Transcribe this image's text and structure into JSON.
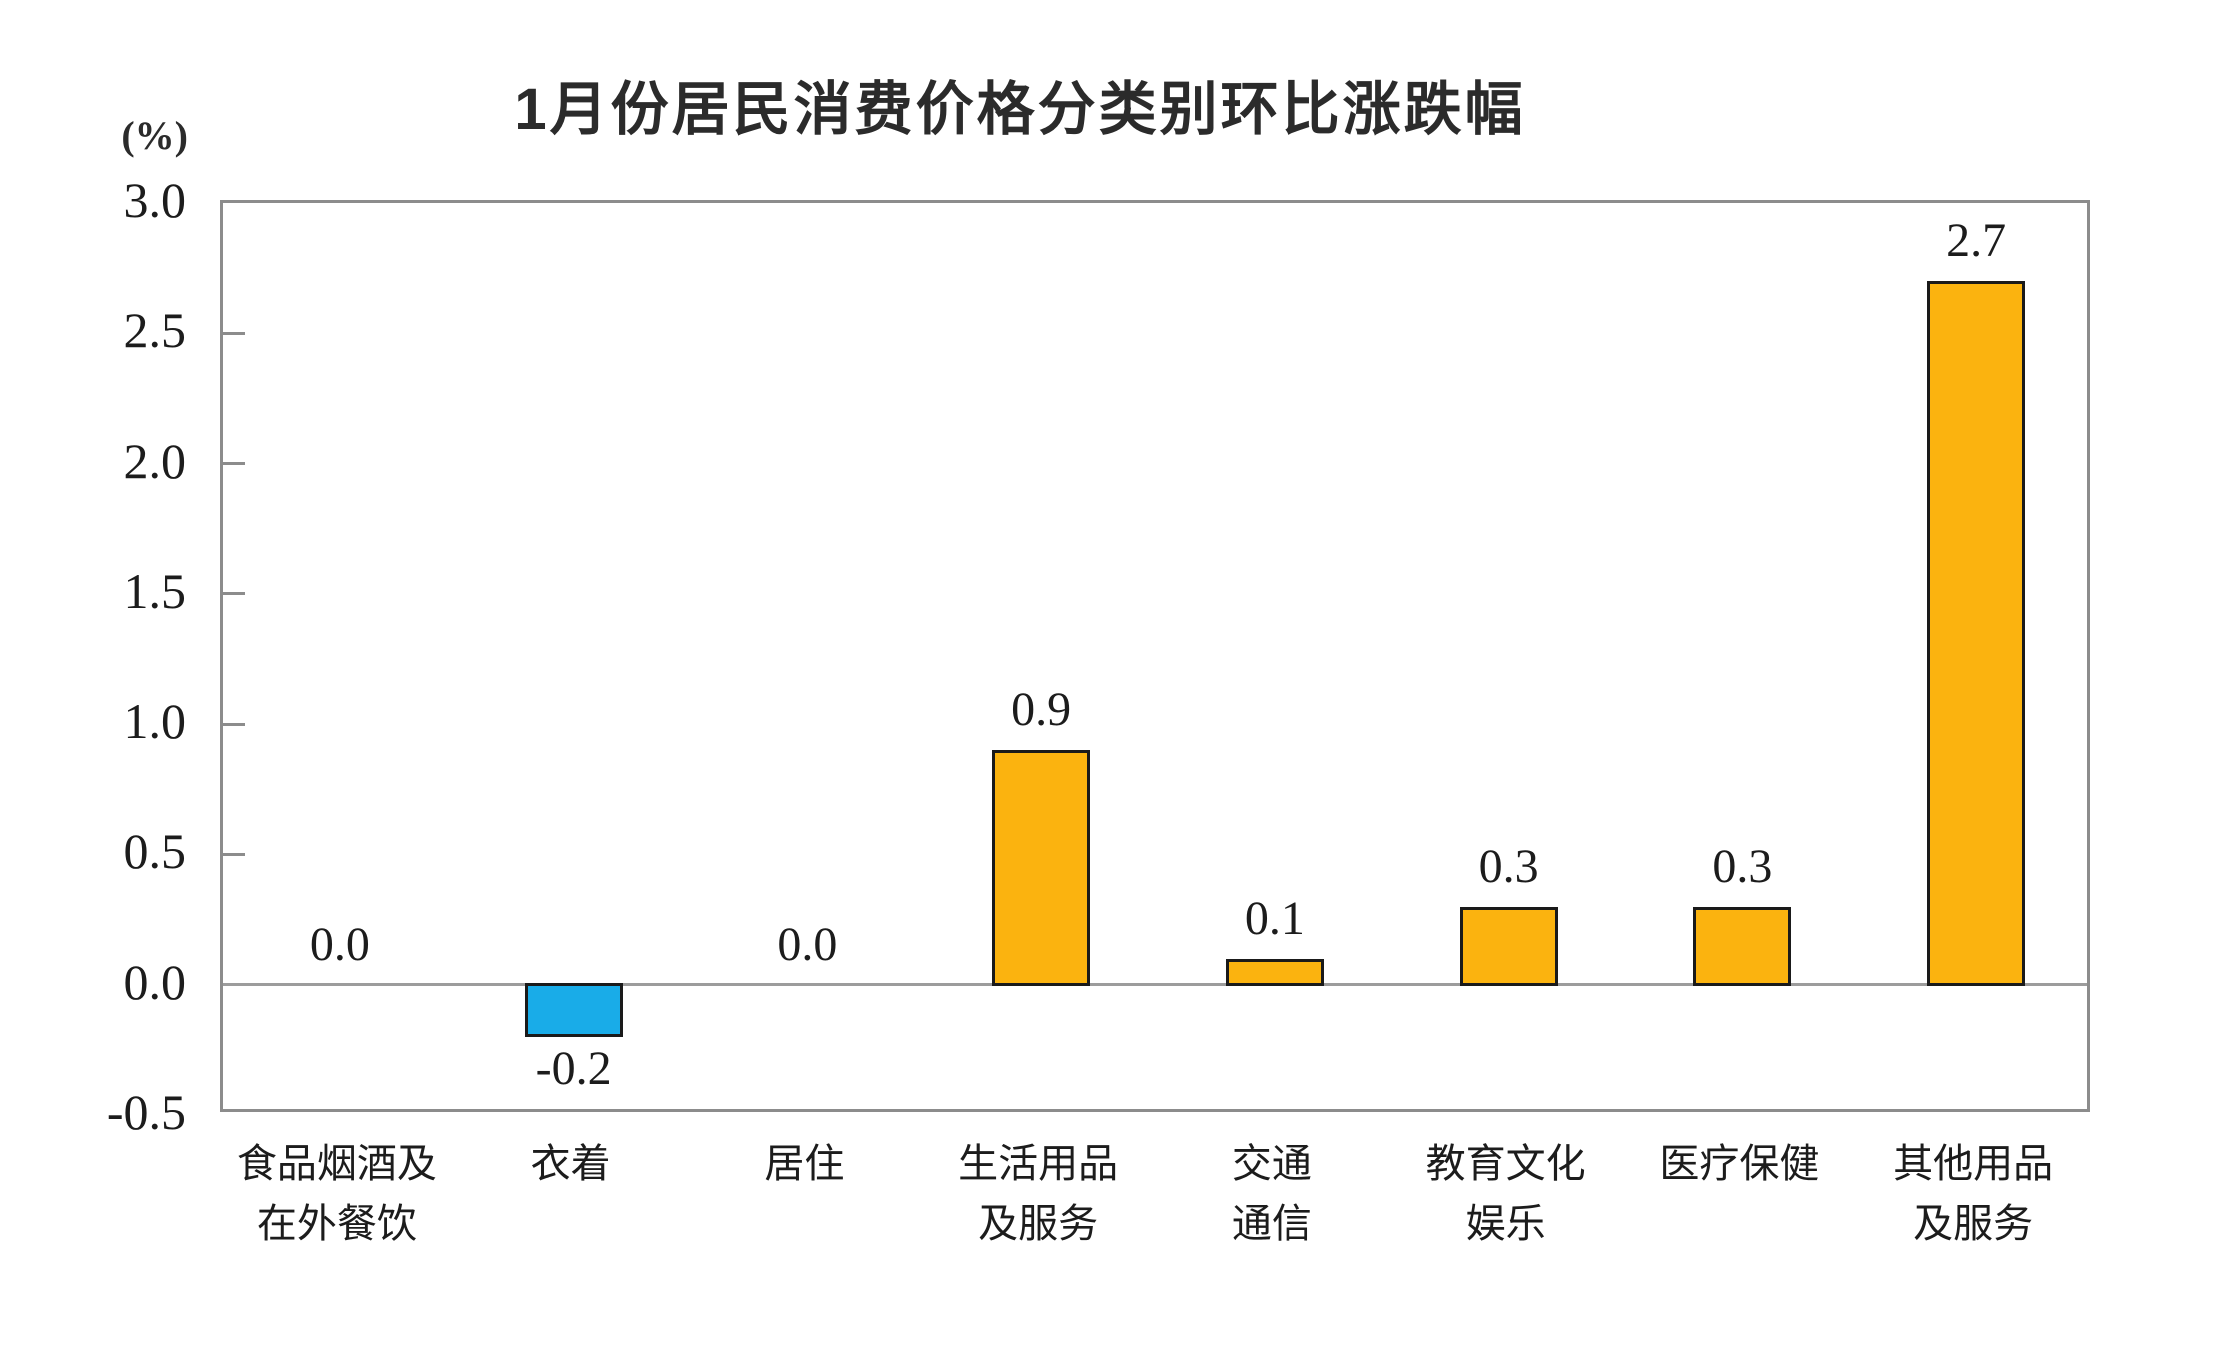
{
  "chart_data": {
    "type": "bar",
    "title": "1月份居民消费价格分类别环比涨跌幅",
    "ylabel": "(%)",
    "xlabel": "",
    "categories": [
      "食品烟酒及\n在外餐饮",
      "衣着",
      "居住",
      "生活用品\n及服务",
      "交通\n通信",
      "教育文化\n娱乐",
      "医疗保健",
      "其他用品\n及服务"
    ],
    "values": [
      0.0,
      -0.2,
      0.0,
      0.9,
      0.1,
      0.3,
      0.3,
      2.7
    ],
    "data_labels": [
      "0.0",
      "-0.2",
      "0.0",
      "0.9",
      "0.1",
      "0.3",
      "0.3",
      "2.7"
    ],
    "ylim": [
      -0.5,
      3.0
    ],
    "ytick_step": 0.5,
    "yticks": [
      3.0,
      2.5,
      2.0,
      1.5,
      1.0,
      0.5,
      0.0,
      -0.5
    ],
    "ytick_labels": [
      "3.0",
      "2.5",
      "2.0",
      "1.5",
      "1.0",
      "0.5",
      "0.0",
      "-0.5"
    ],
    "grid": false,
    "legend": false,
    "colors": {
      "positive_bar": "#FBB30F",
      "negative_bar": "#19ACE8",
      "bar_outline": "#1A1A1A",
      "plot_border": "#8C8C8C",
      "zero_line": "#9C9C9C",
      "text": "#1C1C1C"
    }
  }
}
